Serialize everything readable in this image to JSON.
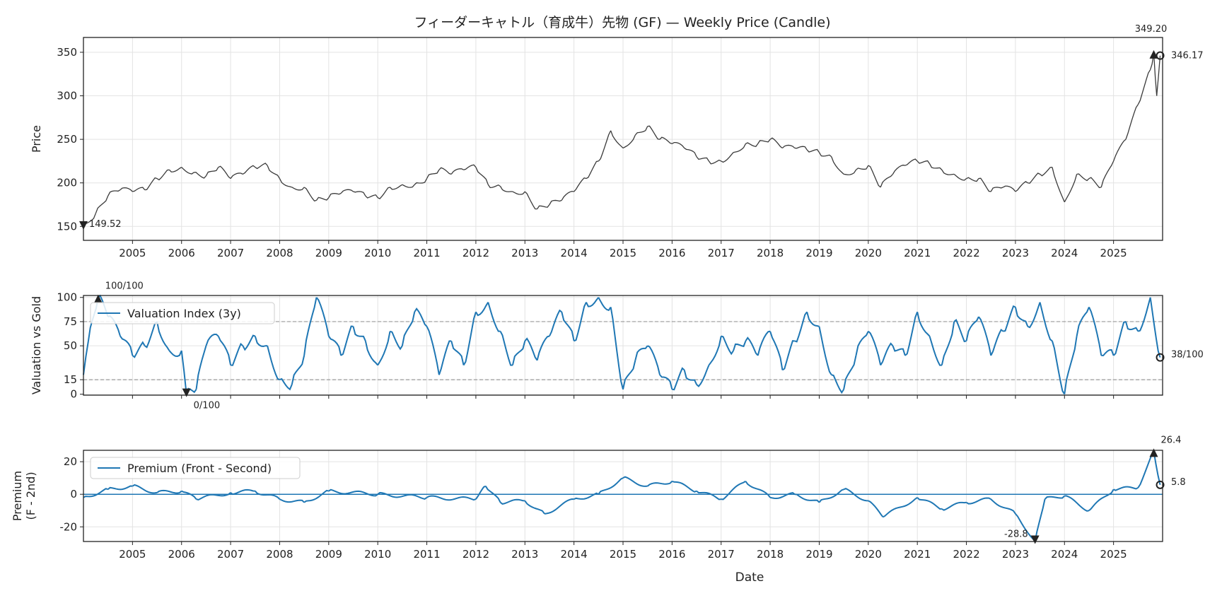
{
  "chart_data": [
    {
      "type": "line",
      "title": "フィーダーキャトル（育成牛）先物 (GF) — Weekly Price (Candle)",
      "ylabel": "Price",
      "xlabel": "",
      "xlim": [
        2004.0,
        2026.0
      ],
      "ylim": [
        134,
        367
      ],
      "grid": true,
      "yticks": [
        150,
        200,
        250,
        300,
        350
      ],
      "xticks": [
        "2005",
        "2006",
        "2007",
        "2008",
        "2009",
        "2010",
        "2011",
        "2012",
        "2013",
        "2014",
        "2015",
        "2016",
        "2017",
        "2018",
        "2019",
        "2020",
        "2021",
        "2022",
        "2023",
        "2024",
        "2025"
      ],
      "color": "#3a3a3a",
      "x": [
        2004.0,
        2004.25,
        2004.5,
        2004.75,
        2005.0,
        2005.25,
        2005.5,
        2005.75,
        2006.0,
        2006.25,
        2006.5,
        2006.75,
        2007.0,
        2007.25,
        2007.5,
        2007.75,
        2008.0,
        2008.25,
        2008.5,
        2008.75,
        2009.0,
        2009.25,
        2009.5,
        2009.75,
        2010.0,
        2010.25,
        2010.5,
        2010.75,
        2011.0,
        2011.25,
        2011.5,
        2011.75,
        2012.0,
        2012.25,
        2012.5,
        2012.75,
        2013.0,
        2013.25,
        2013.5,
        2013.75,
        2014.0,
        2014.25,
        2014.5,
        2014.75,
        2015.0,
        2015.25,
        2015.5,
        2015.75,
        2016.0,
        2016.25,
        2016.5,
        2016.75,
        2017.0,
        2017.25,
        2017.5,
        2017.75,
        2018.0,
        2018.25,
        2018.5,
        2018.75,
        2019.0,
        2019.25,
        2019.5,
        2019.75,
        2020.0,
        2020.25,
        2020.5,
        2020.75,
        2021.0,
        2021.25,
        2021.5,
        2021.75,
        2022.0,
        2022.25,
        2022.5,
        2022.75,
        2023.0,
        2023.25,
        2023.5,
        2023.75,
        2024.0,
        2024.25,
        2024.5,
        2024.75,
        2025.0,
        2025.25,
        2025.5,
        2025.75,
        2025.82,
        2025.88,
        2025.95
      ],
      "y": [
        149.52,
        165,
        185,
        192,
        190,
        192,
        205,
        215,
        218,
        212,
        208,
        218,
        205,
        210,
        218,
        220,
        205,
        195,
        195,
        180,
        183,
        188,
        190,
        185,
        183,
        195,
        198,
        198,
        205,
        215,
        210,
        215,
        218,
        198,
        196,
        190,
        190,
        170,
        175,
        180,
        190,
        205,
        225,
        260,
        240,
        255,
        265,
        250,
        245,
        240,
        230,
        225,
        225,
        235,
        245,
        245,
        250,
        240,
        240,
        238,
        235,
        230,
        210,
        215,
        220,
        195,
        210,
        220,
        225,
        222,
        215,
        210,
        205,
        205,
        190,
        195,
        190,
        200,
        210,
        218,
        178,
        210,
        205,
        195,
        225,
        250,
        290,
        330,
        349.2,
        300,
        346.17
      ],
      "annotations": {
        "max": "349.20",
        "min": "149.52",
        "last": "346.17"
      }
    },
    {
      "type": "line",
      "ylabel": "Valuation vs Gold",
      "xlim": [
        2004.0,
        2026.0
      ],
      "ylim": [
        -1,
        102
      ],
      "grid": true,
      "yticks": [
        0,
        15,
        50,
        75,
        100
      ],
      "hlines": [
        15,
        75
      ],
      "legend": "upper-left",
      "series": [
        {
          "name": "Valuation Index (3y)",
          "color": "#1f77b4",
          "x": [
            2004.0,
            2004.1,
            2004.3,
            2004.5,
            2004.75,
            2005.0,
            2005.25,
            2005.5,
            2005.75,
            2006.0,
            2006.1,
            2006.3,
            2006.5,
            2006.75,
            2007.0,
            2007.25,
            2007.5,
            2007.75,
            2008.0,
            2008.25,
            2008.5,
            2008.75,
            2009.0,
            2009.25,
            2009.5,
            2009.75,
            2010.0,
            2010.25,
            2010.5,
            2010.75,
            2011.0,
            2011.25,
            2011.5,
            2011.75,
            2012.0,
            2012.25,
            2012.5,
            2012.75,
            2013.0,
            2013.25,
            2013.5,
            2013.75,
            2014.0,
            2014.25,
            2014.5,
            2014.75,
            2015.0,
            2015.25,
            2015.5,
            2015.75,
            2016.0,
            2016.25,
            2016.5,
            2016.75,
            2017.0,
            2017.25,
            2017.5,
            2017.75,
            2018.0,
            2018.25,
            2018.5,
            2018.75,
            2019.0,
            2019.25,
            2019.5,
            2019.75,
            2020.0,
            2020.25,
            2020.5,
            2020.75,
            2021.0,
            2021.25,
            2021.5,
            2021.75,
            2022.0,
            2022.25,
            2022.5,
            2022.75,
            2023.0,
            2023.25,
            2023.5,
            2023.75,
            2024.0,
            2024.25,
            2024.5,
            2024.75,
            2025.0,
            2025.25,
            2025.5,
            2025.75,
            2025.95
          ],
          "y": [
            20,
            55,
            100,
            80,
            60,
            40,
            50,
            75,
            45,
            45,
            0,
            5,
            50,
            60,
            30,
            50,
            60,
            50,
            15,
            10,
            40,
            100,
            60,
            40,
            70,
            55,
            30,
            65,
            50,
            85,
            70,
            20,
            55,
            30,
            85,
            95,
            65,
            30,
            55,
            35,
            60,
            85,
            55,
            95,
            100,
            90,
            5,
            35,
            50,
            20,
            5,
            25,
            10,
            30,
            60,
            45,
            55,
            40,
            65,
            25,
            55,
            85,
            70,
            20,
            5,
            40,
            65,
            30,
            50,
            40,
            85,
            60,
            30,
            75,
            55,
            80,
            40,
            65,
            90,
            70,
            95,
            55,
            0,
            60,
            90,
            40,
            40,
            75,
            65,
            100,
            38
          ]
        }
      ],
      "annotations": {
        "max": "100/100",
        "min": "0/100",
        "last": "38/100"
      }
    },
    {
      "type": "line",
      "ylabel": "Premium\n(F - 2nd)",
      "xlabel": "Date",
      "xlim": [
        2004.0,
        2026.0
      ],
      "ylim": [
        -29,
        27
      ],
      "grid": true,
      "yticks": [
        -20,
        0,
        20
      ],
      "hlines": [
        0
      ],
      "legend": "upper-left",
      "series": [
        {
          "name": "Premium (Front - Second)",
          "color": "#1f77b4",
          "x": [
            2004.0,
            2004.5,
            2005.0,
            2005.5,
            2006.0,
            2006.3,
            2007.0,
            2007.5,
            2008.0,
            2008.5,
            2009.0,
            2010.0,
            2011.0,
            2012.0,
            2012.2,
            2012.5,
            2013.0,
            2013.4,
            2014.0,
            2014.5,
            2015.0,
            2015.5,
            2016.0,
            2016.5,
            2017.0,
            2017.5,
            2018.0,
            2018.5,
            2019.0,
            2019.5,
            2020.0,
            2020.3,
            2021.0,
            2021.5,
            2022.0,
            2022.5,
            2023.0,
            2023.4,
            2023.6,
            2024.0,
            2024.5,
            2025.0,
            2025.5,
            2025.82,
            2025.95
          ],
          "y": [
            -2,
            3,
            5,
            1,
            2,
            -3,
            1,
            2,
            -3,
            -5,
            2,
            0,
            -2,
            -3,
            5,
            -5,
            -4,
            -12,
            -3,
            0,
            10,
            5,
            8,
            2,
            -3,
            8,
            -2,
            0,
            -5,
            3,
            -4,
            -14,
            -2,
            -9,
            -5,
            -3,
            -12,
            -28.8,
            -3,
            -1,
            -10,
            3,
            4,
            26.4,
            5.8
          ]
        }
      ],
      "annotations": {
        "max": "26.4",
        "min": "-28.8",
        "last": "5.8"
      }
    }
  ]
}
